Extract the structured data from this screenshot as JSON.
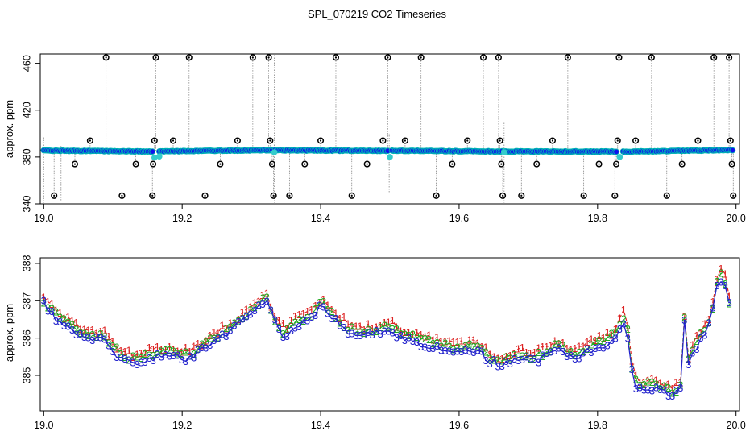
{
  "figure": {
    "title": "SPL_070219  CO2 Timeseries"
  },
  "chart_data": [
    {
      "type": "scatter",
      "panel": "top",
      "title": "",
      "xlabel": "",
      "ylabel": "approx. ppm",
      "xlim": [
        18.995,
        20.005
      ],
      "ylim": [
        340,
        468
      ],
      "x_ticks": [
        19.0,
        19.2,
        19.4,
        19.6,
        19.8,
        20.0
      ],
      "x_tick_labels": [
        "19.0",
        "19.2",
        "19.4",
        "19.6",
        "19.8",
        "20.0"
      ],
      "y_ticks": [
        340,
        380,
        420,
        460
      ],
      "y_tick_labels": [
        "340",
        "380",
        "420",
        "460"
      ],
      "baseline": {
        "segments": [
          {
            "x0": 19.0,
            "x1": 19.157,
            "v0": 385.5,
            "v1": 384.7
          },
          {
            "x0": 19.167,
            "x1": 19.33,
            "v0": 384.8,
            "v1": 385.8
          },
          {
            "x0": 19.33,
            "x1": 19.497,
            "v0": 385.8,
            "v1": 385.2
          },
          {
            "x0": 19.503,
            "x1": 19.662,
            "v0": 385.4,
            "v1": 384.7
          },
          {
            "x0": 19.665,
            "x1": 19.827,
            "v0": 384.8,
            "v1": 384.6
          },
          {
            "x0": 19.837,
            "x1": 19.995,
            "v0": 384.5,
            "v1": 386.0
          }
        ],
        "gap_markers": [
          {
            "x": 19.16,
            "y": 379.5
          },
          {
            "x": 19.167,
            "y": 380.5
          },
          {
            "x": 19.333,
            "y": 384.0
          },
          {
            "x": 19.5,
            "y": 380.0
          },
          {
            "x": 19.665,
            "y": 384.0
          },
          {
            "x": 19.832,
            "y": 380.0
          }
        ]
      },
      "spikes": [
        {
          "x": 19.015,
          "y": 347
        },
        {
          "x": 19.045,
          "y": 374
        },
        {
          "x": 19.067,
          "y": 394
        },
        {
          "x": 19.09,
          "y": 465
        },
        {
          "x": 19.113,
          "y": 347
        },
        {
          "x": 19.133,
          "y": 374
        },
        {
          "x": 19.157,
          "y": 347
        },
        {
          "x": 19.158,
          "y": 374
        },
        {
          "x": 19.16,
          "y": 394
        },
        {
          "x": 19.162,
          "y": 465
        },
        {
          "x": 19.187,
          "y": 394
        },
        {
          "x": 19.21,
          "y": 465
        },
        {
          "x": 19.233,
          "y": 347
        },
        {
          "x": 19.255,
          "y": 374
        },
        {
          "x": 19.28,
          "y": 394
        },
        {
          "x": 19.302,
          "y": 465
        },
        {
          "x": 19.325,
          "y": 465
        },
        {
          "x": 19.327,
          "y": 394
        },
        {
          "x": 19.33,
          "y": 374
        },
        {
          "x": 19.332,
          "y": 347
        },
        {
          "x": 19.355,
          "y": 347
        },
        {
          "x": 19.377,
          "y": 374
        },
        {
          "x": 19.4,
          "y": 394
        },
        {
          "x": 19.422,
          "y": 465
        },
        {
          "x": 19.445,
          "y": 347
        },
        {
          "x": 19.467,
          "y": 374
        },
        {
          "x": 19.49,
          "y": 394
        },
        {
          "x": 19.497,
          "y": 465
        },
        {
          "x": 19.522,
          "y": 394
        },
        {
          "x": 19.545,
          "y": 465
        },
        {
          "x": 19.567,
          "y": 347
        },
        {
          "x": 19.59,
          "y": 374
        },
        {
          "x": 19.612,
          "y": 394
        },
        {
          "x": 19.635,
          "y": 465
        },
        {
          "x": 19.657,
          "y": 465
        },
        {
          "x": 19.659,
          "y": 394
        },
        {
          "x": 19.661,
          "y": 374
        },
        {
          "x": 19.663,
          "y": 347
        },
        {
          "x": 19.69,
          "y": 347
        },
        {
          "x": 19.712,
          "y": 374
        },
        {
          "x": 19.735,
          "y": 394
        },
        {
          "x": 19.757,
          "y": 465
        },
        {
          "x": 19.78,
          "y": 347
        },
        {
          "x": 19.802,
          "y": 374
        },
        {
          "x": 19.825,
          "y": 347
        },
        {
          "x": 19.827,
          "y": 374
        },
        {
          "x": 19.829,
          "y": 394
        },
        {
          "x": 19.831,
          "y": 465
        },
        {
          "x": 19.855,
          "y": 394
        },
        {
          "x": 19.878,
          "y": 465
        },
        {
          "x": 19.9,
          "y": 347
        },
        {
          "x": 19.922,
          "y": 374
        },
        {
          "x": 19.945,
          "y": 394
        },
        {
          "x": 19.968,
          "y": 465
        },
        {
          "x": 19.99,
          "y": 465
        },
        {
          "x": 19.992,
          "y": 394
        },
        {
          "x": 19.994,
          "y": 374
        },
        {
          "x": 19.996,
          "y": 347
        }
      ],
      "colors": {
        "spike_marker": "#000000",
        "spike_line": "#888888",
        "baseline_fill": "#1010ee",
        "baseline_ring": "#00b4b4",
        "gap_marker": "#33cccc"
      }
    },
    {
      "type": "line",
      "panel": "bottom",
      "title": "",
      "xlabel": "",
      "ylabel": "approx. ppm",
      "xlim": [
        18.995,
        20.005
      ],
      "ylim": [
        384.05,
        388.15
      ],
      "x_ticks": [
        19.0,
        19.2,
        19.4,
        19.6,
        19.8,
        20.0
      ],
      "x_tick_labels": [
        "19.0",
        "19.2",
        "19.4",
        "19.6",
        "19.8",
        "20.0"
      ],
      "y_ticks": [
        385,
        386,
        387,
        388
      ],
      "y_tick_labels": [
        "385",
        "386",
        "387",
        "388"
      ],
      "anchors_x": [
        19.0,
        19.005,
        19.01,
        19.02,
        19.03,
        19.04,
        19.05,
        19.06,
        19.07,
        19.08,
        19.09,
        19.1,
        19.11,
        19.12,
        19.13,
        19.14,
        19.15,
        19.16,
        19.17,
        19.18,
        19.19,
        19.2,
        19.21,
        19.22,
        19.23,
        19.24,
        19.25,
        19.26,
        19.27,
        19.28,
        19.29,
        19.3,
        19.31,
        19.32,
        19.33,
        19.34,
        19.35,
        19.36,
        19.37,
        19.38,
        19.39,
        19.4,
        19.41,
        19.42,
        19.43,
        19.44,
        19.45,
        19.46,
        19.47,
        19.48,
        19.49,
        19.5,
        19.51,
        19.52,
        19.53,
        19.54,
        19.55,
        19.56,
        19.57,
        19.58,
        19.59,
        19.6,
        19.61,
        19.62,
        19.63,
        19.64,
        19.65,
        19.66,
        19.67,
        19.68,
        19.69,
        19.7,
        19.71,
        19.72,
        19.73,
        19.74,
        19.75,
        19.76,
        19.77,
        19.78,
        19.79,
        19.8,
        19.81,
        19.82,
        19.83,
        19.84,
        19.845,
        19.85,
        19.855,
        19.86,
        19.87,
        19.88,
        19.89,
        19.9,
        19.91,
        19.92,
        19.925,
        19.93,
        19.935,
        19.94,
        19.95,
        19.96,
        19.965,
        19.97,
        19.975,
        19.98,
        19.985,
        19.99
      ],
      "anchors_v": [
        387.05,
        386.9,
        386.8,
        386.6,
        386.45,
        386.3,
        386.2,
        386.15,
        386.1,
        386.05,
        386.05,
        385.8,
        385.6,
        385.5,
        385.45,
        385.5,
        385.55,
        385.6,
        385.65,
        385.65,
        385.6,
        385.55,
        385.6,
        385.7,
        385.8,
        385.95,
        386.05,
        386.2,
        386.3,
        386.45,
        386.65,
        386.8,
        386.95,
        387.2,
        386.7,
        386.3,
        386.15,
        386.4,
        386.5,
        386.55,
        386.7,
        386.95,
        386.85,
        386.6,
        386.45,
        386.25,
        386.2,
        386.15,
        386.2,
        386.25,
        386.3,
        386.35,
        386.2,
        386.1,
        386.05,
        386.0,
        385.95,
        385.9,
        385.85,
        385.85,
        385.8,
        385.75,
        385.75,
        385.8,
        385.75,
        385.55,
        385.45,
        385.4,
        385.45,
        385.55,
        385.6,
        385.55,
        385.5,
        385.6,
        385.7,
        385.8,
        385.75,
        385.65,
        385.6,
        385.7,
        385.8,
        385.9,
        385.95,
        386.05,
        386.3,
        386.65,
        386.0,
        385.1,
        384.85,
        384.8,
        384.75,
        384.8,
        384.7,
        384.65,
        384.6,
        384.7,
        386.7,
        385.3,
        385.6,
        385.8,
        386.1,
        386.4,
        386.7,
        387.3,
        387.6,
        387.75,
        387.5,
        387.0
      ],
      "series": [
        {
          "name": "1",
          "symbol": "1",
          "offset": 0.1,
          "color": "#dd2222",
          "lty": "dashed"
        },
        {
          "name": "2",
          "symbol": "2",
          "offset": -0.02,
          "color": "#22aa22",
          "lty": "dashed"
        },
        {
          "name": "3",
          "symbol": "3",
          "offset": -0.12,
          "color": "#2222cc",
          "lty": "solid"
        }
      ],
      "n_points": 170
    }
  ]
}
